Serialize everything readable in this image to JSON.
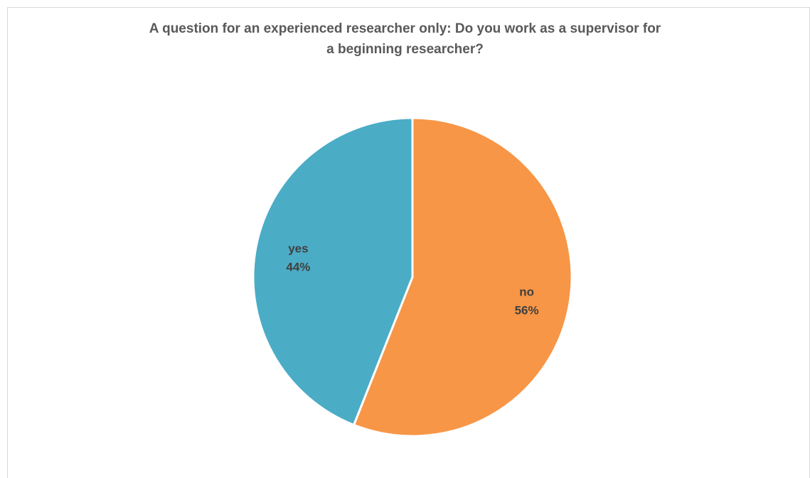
{
  "chart_data": {
    "type": "pie",
    "title_lines": [
      "A question for an experienced researcher only: Do you work as a supervisor for",
      "a beginning researcher?"
    ],
    "slices": [
      {
        "label": "no",
        "value": 56,
        "value_label": "56%",
        "color": "#f79646"
      },
      {
        "label": "yes",
        "value": 44,
        "value_label": "44%",
        "color": "#4bacc6"
      }
    ],
    "start_angle_deg": 0,
    "direction": "clockwise",
    "legend": "none",
    "slice_border_color": "#ffffff"
  }
}
